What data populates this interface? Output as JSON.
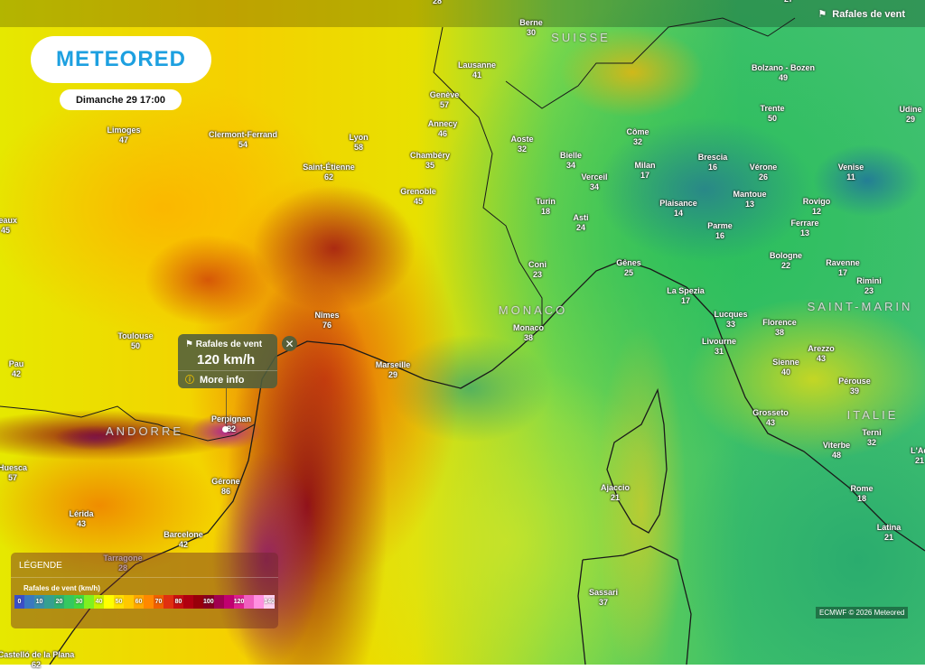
{
  "brand": {
    "logo_text": "METEORED"
  },
  "timestamp": "Dimanche 29 17:00",
  "layer": {
    "label": "Rafales de vent",
    "icon": "wind-flag-icon"
  },
  "popup": {
    "title": "Rafales de vent",
    "value": "120 km/h",
    "more_info": "More info",
    "info_icon": "info-icon",
    "close_icon": "close-icon"
  },
  "legend": {
    "title": "LÉGENDE",
    "subtitle": "Rafales de vent (km/h)",
    "stops": [
      {
        "label": "0",
        "color": "#3b4fc8"
      },
      {
        "label": "",
        "color": "#3a78c0"
      },
      {
        "label": "10",
        "color": "#3a8fa8"
      },
      {
        "label": "",
        "color": "#35a090"
      },
      {
        "label": "20",
        "color": "#30b070"
      },
      {
        "label": "",
        "color": "#35c860"
      },
      {
        "label": "30",
        "color": "#40d840"
      },
      {
        "label": "",
        "color": "#80f020"
      },
      {
        "label": "40",
        "color": "#c8f000"
      },
      {
        "label": "",
        "color": "#ffff00"
      },
      {
        "label": "50",
        "color": "#ffe000"
      },
      {
        "label": "",
        "color": "#ffc800"
      },
      {
        "label": "60",
        "color": "#ffa800"
      },
      {
        "label": "",
        "color": "#ff8800"
      },
      {
        "label": "70",
        "color": "#f06000"
      },
      {
        "label": "",
        "color": "#e03010"
      },
      {
        "label": "80",
        "color": "#c81010"
      },
      {
        "label": "",
        "color": "#b00010"
      },
      {
        "label": "",
        "color": "#98000a"
      },
      {
        "label": "100",
        "color": "#880020"
      },
      {
        "label": "",
        "color": "#a00050"
      },
      {
        "label": "",
        "color": "#c00070"
      },
      {
        "label": "120",
        "color": "#e02090"
      },
      {
        "label": "",
        "color": "#f060c0"
      },
      {
        "label": "",
        "color": "#ff90e0"
      },
      {
        "label": "140",
        "color": "#ffd0f0"
      }
    ]
  },
  "credit": "ECMWF © 2026 Meteored",
  "countries": [
    "SUISSE",
    "ANDORRE",
    "MONACO",
    "SAINT-MARIN",
    "ITALIE"
  ],
  "cities": [
    {
      "name": "",
      "value": "28"
    },
    {
      "name": "",
      "value": "27"
    },
    {
      "name": "Berne",
      "value": "30"
    },
    {
      "name": "Lausanne",
      "value": "41"
    },
    {
      "name": "Genève",
      "value": "57"
    },
    {
      "name": "Annecy",
      "value": "46"
    },
    {
      "name": "Chambéry",
      "value": "35"
    },
    {
      "name": "Grenoble",
      "value": "45"
    },
    {
      "name": "Lyon",
      "value": "58"
    },
    {
      "name": "Saint-Étienne",
      "value": "62"
    },
    {
      "name": "Clermont-Ferrand",
      "value": "54"
    },
    {
      "name": "Limoges",
      "value": "47"
    },
    {
      "name": "deaux",
      "value": "45"
    },
    {
      "name": "Toulouse",
      "value": "50"
    },
    {
      "name": "Pau",
      "value": "42"
    },
    {
      "name": "Nîmes",
      "value": "76"
    },
    {
      "name": "Marseille",
      "value": "29"
    },
    {
      "name": "Perpignan",
      "value": "82"
    },
    {
      "name": "Huesca",
      "value": "57"
    },
    {
      "name": "Gérone",
      "value": "86"
    },
    {
      "name": "Lérida",
      "value": "43"
    },
    {
      "name": "Barcelone",
      "value": "42"
    },
    {
      "name": "Tarragone",
      "value": "28"
    },
    {
      "name": "Castelló de la Plana",
      "value": "62"
    },
    {
      "name": "Aoste",
      "value": "32"
    },
    {
      "name": "Bielle",
      "value": "34"
    },
    {
      "name": "Verceil",
      "value": "34"
    },
    {
      "name": "Côme",
      "value": "32"
    },
    {
      "name": "Milan",
      "value": "17"
    },
    {
      "name": "Brescia",
      "value": "16"
    },
    {
      "name": "Vérone",
      "value": "26"
    },
    {
      "name": "Mantoue",
      "value": "13"
    },
    {
      "name": "Plaisance",
      "value": "14"
    },
    {
      "name": "Turin",
      "value": "18"
    },
    {
      "name": "Asti",
      "value": "24"
    },
    {
      "name": "Parme",
      "value": "16"
    },
    {
      "name": "Rovigo",
      "value": "12"
    },
    {
      "name": "Ferrare",
      "value": "13"
    },
    {
      "name": "Bologne",
      "value": "22"
    },
    {
      "name": "Ravenne",
      "value": "17"
    },
    {
      "name": "Venise",
      "value": "11"
    },
    {
      "name": "Bolzano - Bozen",
      "value": "49"
    },
    {
      "name": "Trente",
      "value": "50"
    },
    {
      "name": "Udine",
      "value": "29"
    },
    {
      "name": "Coni",
      "value": "23"
    },
    {
      "name": "Gênes",
      "value": "25"
    },
    {
      "name": "La Spezia",
      "value": "17"
    },
    {
      "name": "Lucques",
      "value": "33"
    },
    {
      "name": "Florence",
      "value": "38"
    },
    {
      "name": "Livourne",
      "value": "31"
    },
    {
      "name": "Monaco",
      "value": "38"
    },
    {
      "name": "Rimini",
      "value": "23"
    },
    {
      "name": "Arezzo",
      "value": "43"
    },
    {
      "name": "Sienne",
      "value": "40"
    },
    {
      "name": "Pérouse",
      "value": "39"
    },
    {
      "name": "Grosseto",
      "value": "43"
    },
    {
      "name": "Terni",
      "value": "32"
    },
    {
      "name": "Viterbe",
      "value": "48"
    },
    {
      "name": "Rome",
      "value": "18"
    },
    {
      "name": "Latina",
      "value": "21"
    },
    {
      "name": "L'Aq",
      "value": "21"
    },
    {
      "name": "Ajaccio",
      "value": "21"
    },
    {
      "name": "Sassari",
      "value": "37"
    }
  ]
}
